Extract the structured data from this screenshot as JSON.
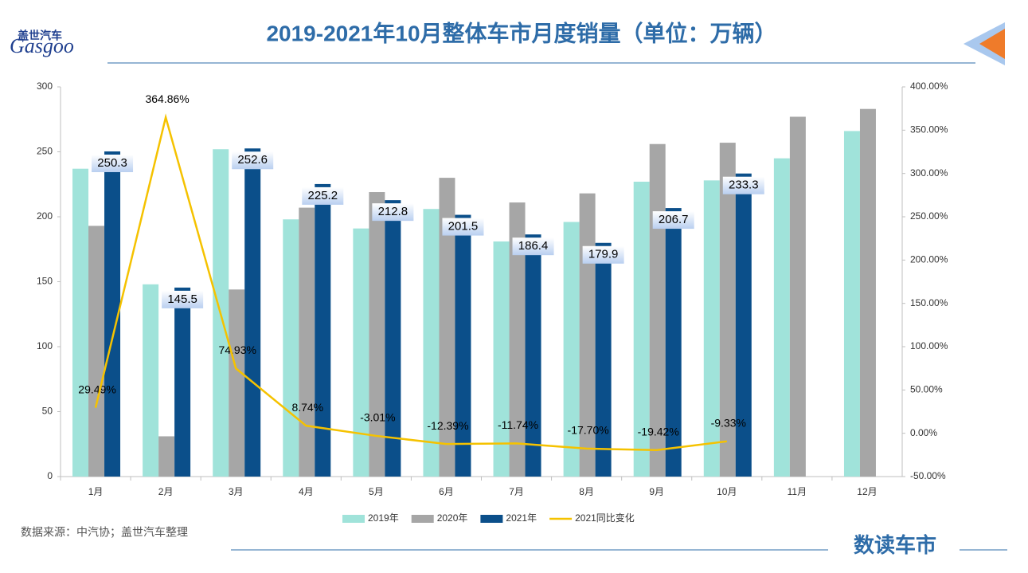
{
  "logo": {
    "cn": "盖世汽车",
    "en": "Gasgoo"
  },
  "brand": "数读车市",
  "source": "数据来源：中汽协；盖世汽车整理",
  "chart_data": {
    "type": "bar",
    "title": "2019-2021年10月整体车市月度销量（单位：万辆）",
    "categories": [
      "1月",
      "2月",
      "3月",
      "4月",
      "5月",
      "6月",
      "7月",
      "8月",
      "9月",
      "10月",
      "11月",
      "12月"
    ],
    "series": [
      {
        "name": "2019年",
        "color": "#a0e3da",
        "values": [
          237,
          148,
          252,
          198,
          191,
          206,
          181,
          196,
          227,
          228,
          245,
          266
        ]
      },
      {
        "name": "2020年",
        "color": "#a6a6a6",
        "values": [
          193,
          31,
          144,
          207,
          219,
          230,
          211,
          218,
          256,
          257,
          277,
          283
        ]
      },
      {
        "name": "2021年",
        "color": "#0b4f8a",
        "values": [
          250.3,
          145.5,
          252.6,
          225.2,
          212.8,
          201.5,
          186.4,
          179.9,
          206.7,
          233.3,
          null,
          null
        ]
      },
      {
        "name": "2021同比变化",
        "type": "line",
        "axis": "y2",
        "color": "#f5c200",
        "values": [
          29.49,
          364.86,
          74.93,
          8.74,
          -3.01,
          -12.39,
          -11.74,
          -17.7,
          -19.42,
          -9.33,
          null,
          null
        ],
        "value_labels": [
          "29.49%",
          "364.86%",
          "74.93%",
          "8.74%",
          "-3.01%",
          "-12.39%",
          "-11.74%",
          "-17.70%",
          "-19.42%",
          "-9.33%",
          null,
          null
        ]
      }
    ],
    "ylim": [
      0,
      300
    ],
    "yticks": [
      0,
      50,
      100,
      150,
      200,
      250,
      300
    ],
    "y2lim": [
      -50,
      400
    ],
    "y2ticks": [
      {
        "value": -50,
        "label": "-50.00%"
      },
      {
        "value": 0,
        "label": "0.00%"
      },
      {
        "value": 50,
        "label": "50.00%"
      },
      {
        "value": 100,
        "label": "100.00%"
      },
      {
        "value": 150,
        "label": "150.00%"
      },
      {
        "value": 200,
        "label": "200.00%"
      },
      {
        "value": 250,
        "label": "250.00%"
      },
      {
        "value": 300,
        "label": "300.00%"
      },
      {
        "value": 350,
        "label": "350.00%"
      },
      {
        "value": 400,
        "label": "400.00%"
      }
    ],
    "legend": "bottom"
  }
}
